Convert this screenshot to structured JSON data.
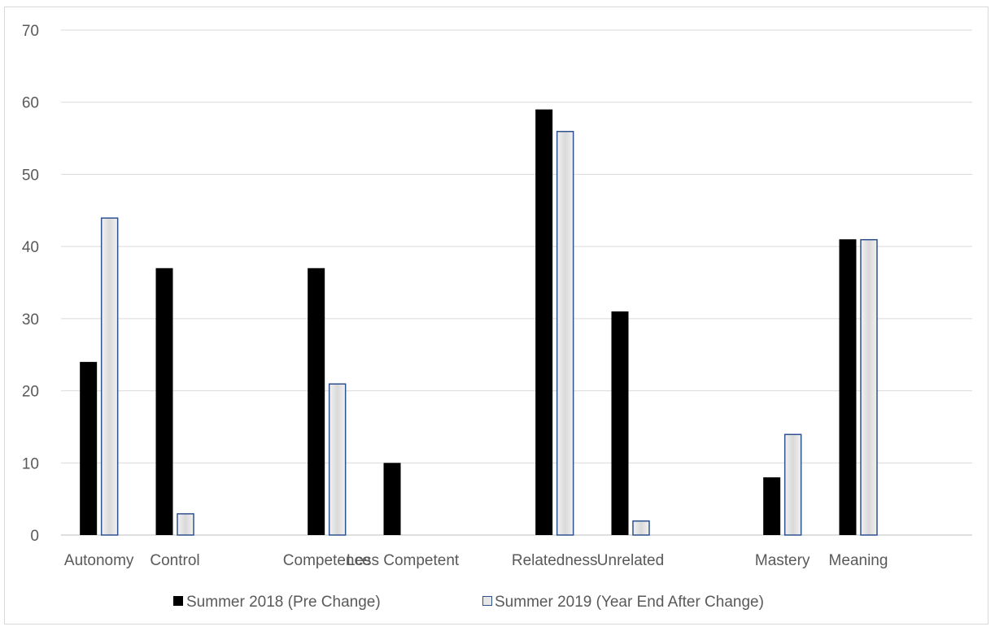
{
  "chart_data": {
    "type": "bar",
    "title": "",
    "xlabel": "",
    "ylabel": "",
    "ylim": [
      0,
      70
    ],
    "yticks": [
      0,
      10,
      20,
      30,
      40,
      50,
      60,
      70
    ],
    "grid": true,
    "legend_position": "bottom",
    "categories": [
      "Autonomy",
      "Control",
      "",
      "Competence",
      "Less Competent",
      "",
      "Relatedness",
      "Unrelated",
      "",
      "Mastery",
      "Meaning",
      ""
    ],
    "series": [
      {
        "name": "Summer 2018 (Pre Change)",
        "values": [
          24,
          37,
          null,
          37,
          10,
          null,
          59,
          31,
          null,
          8,
          41,
          null
        ],
        "color": "#000000"
      },
      {
        "name": "Summer 2019 (Year End After Change)",
        "values": [
          44,
          3,
          null,
          21,
          null,
          null,
          56,
          2,
          null,
          14,
          41,
          null
        ],
        "color": "#e6e6e6",
        "border_color": "#2f528f"
      }
    ]
  }
}
